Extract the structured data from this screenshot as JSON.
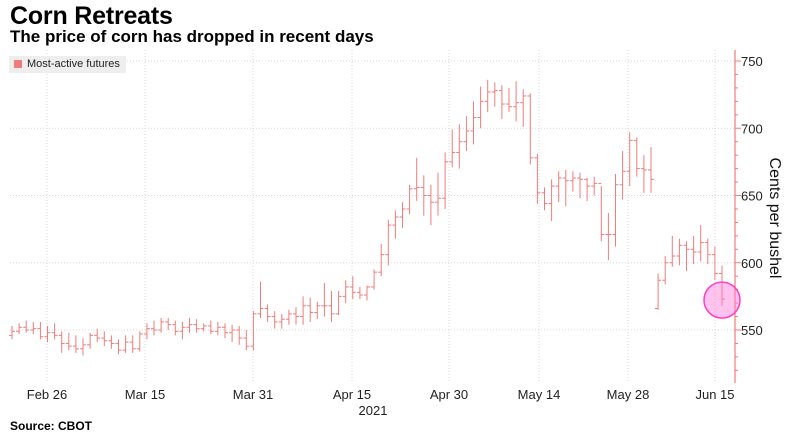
{
  "title": "Corn Retreats",
  "subtitle": "The price of corn has dropped in recent days",
  "source": "Source: CBOT",
  "chart_data": {
    "type": "ohlc",
    "title": "Corn Retreats",
    "subtitle": "The price of corn has dropped in recent days",
    "ylabel": "Cents per bushel",
    "ylim": [
      515,
      755
    ],
    "yticks": [
      550,
      600,
      650,
      700,
      750
    ],
    "y_axis_position": "right",
    "xticks": [
      "Feb 26",
      "Mar 15",
      "Mar 31",
      "Apr 15",
      "Apr 30",
      "May 14",
      "May 28",
      "Jun 15"
    ],
    "x_year_label": "2021",
    "grid": true,
    "legend_position": "top-left",
    "series": [
      {
        "name": "Most-active futures",
        "color": "#f07c7c",
        "values": [
          [
            546,
            553,
            543,
            549
          ],
          [
            549,
            555,
            547,
            552
          ],
          [
            552,
            557,
            548,
            550
          ],
          [
            550,
            556,
            547,
            551
          ],
          [
            551,
            556,
            543,
            545
          ],
          [
            545,
            553,
            541,
            548
          ],
          [
            548,
            555,
            543,
            546
          ],
          [
            546,
            549,
            533,
            540
          ],
          [
            540,
            548,
            535,
            538
          ],
          [
            538,
            546,
            533,
            536
          ],
          [
            536,
            544,
            531,
            539
          ],
          [
            539,
            548,
            536,
            546
          ],
          [
            546,
            551,
            541,
            544
          ],
          [
            544,
            549,
            538,
            542
          ],
          [
            542,
            546,
            536,
            540
          ],
          [
            540,
            543,
            532,
            535
          ],
          [
            535,
            546,
            533,
            541
          ],
          [
            541,
            546,
            533,
            536
          ],
          [
            536,
            549,
            534,
            547
          ],
          [
            547,
            555,
            543,
            551
          ],
          [
            551,
            557,
            546,
            550
          ],
          [
            550,
            559,
            548,
            556
          ],
          [
            556,
            559,
            550,
            554
          ],
          [
            554,
            557,
            546,
            549
          ],
          [
            549,
            556,
            543,
            552
          ],
          [
            552,
            559,
            548,
            554
          ],
          [
            554,
            558,
            548,
            551
          ],
          [
            551,
            555,
            549,
            553
          ],
          [
            553,
            557,
            547,
            549
          ],
          [
            549,
            556,
            546,
            552
          ],
          [
            552,
            555,
            544,
            548
          ],
          [
            548,
            554,
            541,
            550
          ],
          [
            550,
            553,
            539,
            544
          ],
          [
            544,
            550,
            535,
            538
          ],
          [
            538,
            564,
            535,
            562
          ],
          [
            562,
            586,
            559,
            566
          ],
          [
            566,
            569,
            556,
            560
          ],
          [
            560,
            564,
            551,
            556
          ],
          [
            556,
            562,
            551,
            558
          ],
          [
            558,
            565,
            554,
            562
          ],
          [
            562,
            567,
            554,
            560
          ],
          [
            560,
            575,
            554,
            568
          ],
          [
            568,
            574,
            556,
            563
          ],
          [
            563,
            571,
            558,
            568
          ],
          [
            568,
            585,
            560,
            568
          ],
          [
            568,
            579,
            556,
            562
          ],
          [
            562,
            579,
            561,
            575
          ],
          [
            575,
            587,
            570,
            582
          ],
          [
            582,
            590,
            573,
            578
          ],
          [
            578,
            582,
            573,
            576
          ],
          [
            576,
            583,
            572,
            582
          ],
          [
            582,
            595,
            580,
            593
          ],
          [
            593,
            614,
            590,
            606
          ],
          [
            606,
            632,
            598,
            628
          ],
          [
            628,
            639,
            618,
            634
          ],
          [
            634,
            645,
            626,
            640
          ],
          [
            640,
            658,
            636,
            655
          ],
          [
            655,
            678,
            646,
            656
          ],
          [
            656,
            665,
            635,
            650
          ],
          [
            650,
            658,
            628,
            645
          ],
          [
            645,
            667,
            635,
            648
          ],
          [
            648,
            682,
            640,
            675
          ],
          [
            675,
            699,
            671,
            682
          ],
          [
            682,
            703,
            670,
            690
          ],
          [
            690,
            709,
            683,
            698
          ],
          [
            698,
            720,
            688,
            708
          ],
          [
            708,
            731,
            700,
            720
          ],
          [
            720,
            736,
            712,
            727
          ],
          [
            727,
            734,
            716,
            728
          ],
          [
            728,
            732,
            707,
            718
          ],
          [
            718,
            730,
            712,
            716
          ],
          [
            716,
            735,
            705,
            719
          ],
          [
            719,
            729,
            701,
            724
          ],
          [
            724,
            726,
            673,
            678
          ],
          [
            678,
            681,
            644,
            652
          ],
          [
            652,
            656,
            639,
            644
          ],
          [
            644,
            662,
            631,
            657
          ],
          [
            657,
            668,
            645,
            663
          ],
          [
            663,
            669,
            642,
            661
          ],
          [
            661,
            668,
            653,
            663
          ],
          [
            663,
            667,
            648,
            662
          ],
          [
            662,
            663,
            646,
            657
          ],
          [
            657,
            664,
            650,
            659
          ],
          [
            659,
            657,
            616,
            621
          ],
          [
            621,
            637,
            602,
            621
          ],
          [
            621,
            666,
            612,
            658
          ],
          [
            658,
            683,
            647,
            668
          ],
          [
            668,
            697,
            657,
            691
          ],
          [
            691,
            693,
            664,
            670
          ],
          [
            670,
            680,
            652,
            669
          ],
          [
            669,
            686,
            652,
            662
          ],
          [
            566,
            592,
            565,
            587
          ],
          [
            587,
            605,
            584,
            600
          ],
          [
            600,
            620,
            597,
            605
          ],
          [
            605,
            618,
            598,
            613
          ],
          [
            613,
            616,
            594,
            610
          ],
          [
            610,
            620,
            599,
            608
          ],
          [
            608,
            628,
            601,
            615
          ],
          [
            615,
            618,
            599,
            606
          ],
          [
            606,
            612,
            587,
            592
          ],
          [
            592,
            598,
            568,
            573
          ]
        ]
      }
    ]
  }
}
